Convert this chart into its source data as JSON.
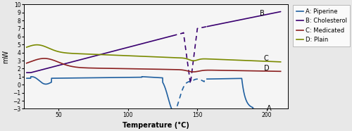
{
  "xlabel": "Temperature (°C)",
  "ylabel": "mW",
  "xlim": [
    25,
    215
  ],
  "ylim": [
    -3,
    10
  ],
  "yticks": [
    -3,
    -2,
    -1,
    0,
    1,
    2,
    3,
    4,
    5,
    6,
    7,
    8,
    9,
    10
  ],
  "xticks": [
    50,
    100,
    150,
    200
  ],
  "legend_labels": [
    "A: Piperine",
    "B: Cholesterol",
    "C: Medicated",
    "D: Plain"
  ],
  "colors": {
    "A": "#2060a0",
    "B": "#3a0070",
    "C": "#7a8a00",
    "D": "#8b2020"
  },
  "bg_color": "#e8e8e8",
  "plot_bg": "#f5f5f5"
}
